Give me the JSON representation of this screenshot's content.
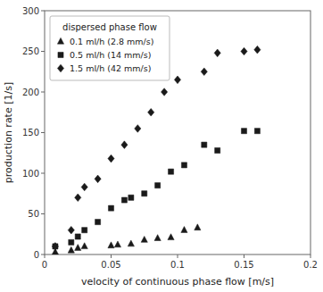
{
  "chart_data": {
    "type": "scatter",
    "xlabel": "velocity of continuous phase flow [m/s]",
    "ylabel": "production rate [1/s]",
    "legend_title": "dispersed phase flow",
    "legend": "upper-left",
    "grid": false,
    "xlim": [
      0,
      0.2
    ],
    "ylim": [
      0,
      300
    ],
    "xticks": [
      0,
      0.05,
      0.1,
      0.15,
      0.2
    ],
    "yticks": [
      0,
      50,
      100,
      150,
      200,
      250,
      300
    ],
    "series": [
      {
        "name": "0.1 ml/h (2.8 mm/s)",
        "marker": "triangle",
        "color": "#1a1a1a",
        "x": [
          0.008,
          0.02,
          0.025,
          0.03,
          0.05,
          0.055,
          0.065,
          0.075,
          0.085,
          0.095,
          0.105,
          0.115
        ],
        "values": [
          3,
          5,
          8,
          10,
          11,
          12,
          13,
          18,
          20,
          21,
          30,
          33
        ]
      },
      {
        "name": "0.5 ml/h (14 mm/s)",
        "marker": "square",
        "color": "#1a1a1a",
        "x": [
          0.008,
          0.02,
          0.025,
          0.03,
          0.04,
          0.05,
          0.06,
          0.065,
          0.075,
          0.085,
          0.095,
          0.105,
          0.12,
          0.13,
          0.15,
          0.16
        ],
        "values": [
          10,
          15,
          22,
          30,
          40,
          57,
          67,
          70,
          75,
          85,
          102,
          110,
          135,
          128,
          152,
          152
        ]
      },
      {
        "name": "1.5 ml/h (42 mm/s)",
        "marker": "diamond",
        "color": "#1a1a1a",
        "x": [
          0.008,
          0.02,
          0.025,
          0.03,
          0.04,
          0.05,
          0.06,
          0.07,
          0.08,
          0.09,
          0.1,
          0.12,
          0.13,
          0.15,
          0.16
        ],
        "values": [
          10,
          30,
          70,
          83,
          93,
          118,
          135,
          155,
          175,
          200,
          215,
          225,
          248,
          250,
          252
        ]
      }
    ]
  }
}
